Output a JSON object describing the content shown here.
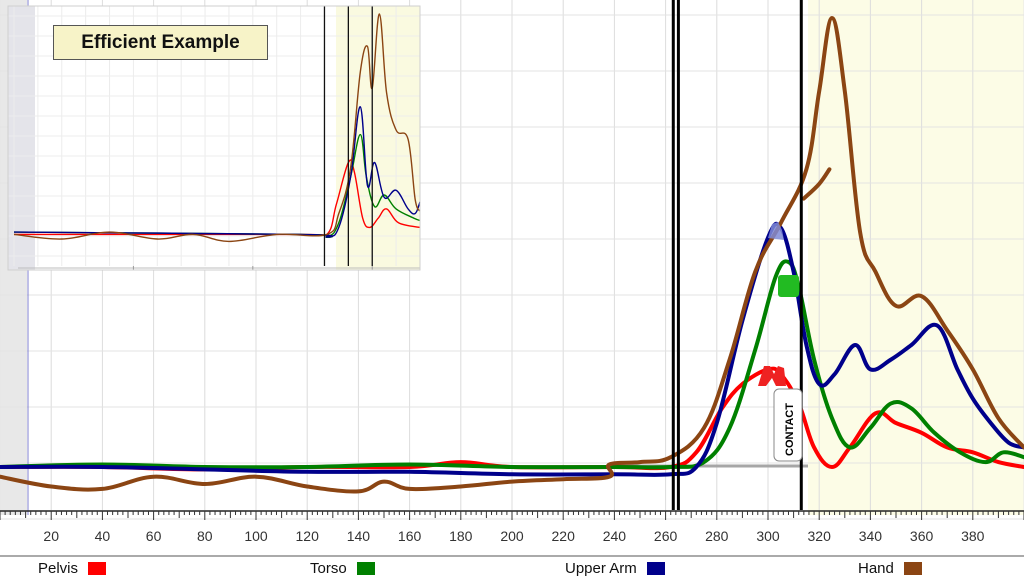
{
  "inset": {
    "title": "Efficient Example"
  },
  "event_label": "CONTACT",
  "colors": {
    "pelvis": "#ff0000",
    "torso": "#008000",
    "upper_arm": "#00008b",
    "hand": "#8b4513"
  },
  "chart_data": {
    "type": "line",
    "xlim": [
      0,
      400
    ],
    "ylim": [
      0,
      1
    ],
    "x_ticks": [
      20,
      40,
      60,
      80,
      100,
      120,
      140,
      160,
      180,
      200,
      220,
      240,
      260,
      280,
      300,
      320,
      340,
      360,
      380
    ],
    "grid": true,
    "legend_placement": "bottom",
    "vertical_markers": [
      263,
      265,
      313
    ],
    "event_markers": [
      {
        "label": "CONTACT",
        "x": 313
      }
    ],
    "series": [
      {
        "name": "Pelvis",
        "color": "#ff0000",
        "points": [
          [
            0,
            0.08
          ],
          [
            40,
            0.08
          ],
          [
            80,
            0.075
          ],
          [
            120,
            0.08
          ],
          [
            160,
            0.08
          ],
          [
            180,
            0.09
          ],
          [
            200,
            0.08
          ],
          [
            240,
            0.08
          ],
          [
            262,
            0.08
          ],
          [
            272,
            0.11
          ],
          [
            282,
            0.2
          ],
          [
            290,
            0.25
          ],
          [
            300,
            0.28
          ],
          [
            305,
            0.27
          ],
          [
            312,
            0.21
          ],
          [
            318,
            0.12
          ],
          [
            325,
            0.08
          ],
          [
            332,
            0.12
          ],
          [
            342,
            0.19
          ],
          [
            350,
            0.17
          ],
          [
            360,
            0.15
          ],
          [
            370,
            0.12
          ],
          [
            380,
            0.11
          ],
          [
            390,
            0.09
          ],
          [
            400,
            0.08
          ]
        ]
      },
      {
        "name": "Torso",
        "color": "#008000",
        "points": [
          [
            0,
            0.08
          ],
          [
            40,
            0.085
          ],
          [
            80,
            0.08
          ],
          [
            120,
            0.08
          ],
          [
            160,
            0.085
          ],
          [
            200,
            0.08
          ],
          [
            240,
            0.08
          ],
          [
            262,
            0.08
          ],
          [
            275,
            0.09
          ],
          [
            285,
            0.16
          ],
          [
            295,
            0.32
          ],
          [
            303,
            0.47
          ],
          [
            308,
            0.5
          ],
          [
            312,
            0.45
          ],
          [
            318,
            0.3
          ],
          [
            325,
            0.18
          ],
          [
            332,
            0.12
          ],
          [
            340,
            0.16
          ],
          [
            348,
            0.21
          ],
          [
            356,
            0.2
          ],
          [
            365,
            0.15
          ],
          [
            375,
            0.11
          ],
          [
            385,
            0.09
          ],
          [
            392,
            0.11
          ],
          [
            400,
            0.1
          ]
        ]
      },
      {
        "name": "Upper Arm",
        "color": "#00008b",
        "points": [
          [
            0,
            0.08
          ],
          [
            40,
            0.08
          ],
          [
            80,
            0.075
          ],
          [
            120,
            0.07
          ],
          [
            160,
            0.07
          ],
          [
            200,
            0.065
          ],
          [
            240,
            0.065
          ],
          [
            262,
            0.065
          ],
          [
            272,
            0.08
          ],
          [
            280,
            0.17
          ],
          [
            290,
            0.38
          ],
          [
            300,
            0.55
          ],
          [
            305,
            0.57
          ],
          [
            310,
            0.48
          ],
          [
            315,
            0.33
          ],
          [
            320,
            0.25
          ],
          [
            326,
            0.27
          ],
          [
            334,
            0.33
          ],
          [
            340,
            0.28
          ],
          [
            348,
            0.3
          ],
          [
            356,
            0.33
          ],
          [
            366,
            0.37
          ],
          [
            374,
            0.28
          ],
          [
            380,
            0.22
          ],
          [
            387,
            0.17
          ],
          [
            394,
            0.13
          ],
          [
            400,
            0.12
          ]
        ]
      },
      {
        "name": "Hand",
        "color": "#8b4513",
        "points": [
          [
            0,
            0.06
          ],
          [
            20,
            0.04
          ],
          [
            40,
            0.035
          ],
          [
            60,
            0.06
          ],
          [
            80,
            0.045
          ],
          [
            100,
            0.06
          ],
          [
            120,
            0.04
          ],
          [
            140,
            0.03
          ],
          [
            150,
            0.05
          ],
          [
            160,
            0.035
          ],
          [
            180,
            0.04
          ],
          [
            200,
            0.05
          ],
          [
            220,
            0.055
          ],
          [
            238,
            0.06
          ],
          [
            238,
            0.085
          ],
          [
            250,
            0.09
          ],
          [
            262,
            0.1
          ],
          [
            275,
            0.16
          ],
          [
            285,
            0.3
          ],
          [
            295,
            0.48
          ],
          [
            305,
            0.58
          ],
          [
            315,
            0.69
          ],
          [
            320,
            0.85
          ],
          [
            325,
            1.0
          ],
          [
            330,
            0.85
          ],
          [
            336,
            0.56
          ],
          [
            342,
            0.48
          ],
          [
            350,
            0.41
          ],
          [
            360,
            0.43
          ],
          [
            370,
            0.36
          ],
          [
            380,
            0.28
          ],
          [
            390,
            0.18
          ],
          [
            400,
            0.12
          ]
        ]
      },
      {
        "name": "Hand extension",
        "color": "#8b4513",
        "points": [
          [
            314,
            0.63
          ],
          [
            320,
            0.66
          ],
          [
            324,
            0.69
          ]
        ]
      }
    ]
  },
  "legend": [
    {
      "label": "Pelvis",
      "color": "#ff0000"
    },
    {
      "label": "Torso",
      "color": "#008000"
    },
    {
      "label": "Upper Arm",
      "color": "#00008b"
    },
    {
      "label": "Hand",
      "color": "#8b4513"
    }
  ],
  "inset_chart": {
    "x_ticks": [
      100,
      200,
      300
    ],
    "markers": [
      260,
      280,
      300
    ],
    "series": [
      {
        "name": "Pelvis",
        "color": "#ff0000",
        "points": [
          [
            0,
            0.05
          ],
          [
            240,
            0.05
          ],
          [
            262,
            0.05
          ],
          [
            270,
            0.18
          ],
          [
            280,
            0.36
          ],
          [
            285,
            0.32
          ],
          [
            292,
            0.12
          ],
          [
            298,
            0.08
          ],
          [
            305,
            0.12
          ],
          [
            312,
            0.16
          ],
          [
            322,
            0.1
          ],
          [
            340,
            0.08
          ]
        ]
      },
      {
        "name": "Torso",
        "color": "#008000",
        "points": [
          [
            0,
            0.06
          ],
          [
            240,
            0.05
          ],
          [
            262,
            0.04
          ],
          [
            272,
            0.1
          ],
          [
            282,
            0.3
          ],
          [
            290,
            0.48
          ],
          [
            295,
            0.3
          ],
          [
            302,
            0.17
          ],
          [
            310,
            0.22
          ],
          [
            320,
            0.16
          ],
          [
            335,
            0.12
          ],
          [
            340,
            0.11
          ]
        ]
      },
      {
        "name": "Upper Arm",
        "color": "#00008b",
        "points": [
          [
            0,
            0.06
          ],
          [
            240,
            0.05
          ],
          [
            262,
            0.04
          ],
          [
            272,
            0.08
          ],
          [
            282,
            0.3
          ],
          [
            290,
            0.6
          ],
          [
            296,
            0.26
          ],
          [
            302,
            0.36
          ],
          [
            310,
            0.21
          ],
          [
            320,
            0.24
          ],
          [
            330,
            0.16
          ],
          [
            336,
            0.14
          ],
          [
            340,
            0.19
          ]
        ]
      },
      {
        "name": "Hand",
        "color": "#8b4513",
        "points": [
          [
            0,
            0.05
          ],
          [
            40,
            0.03
          ],
          [
            80,
            0.06
          ],
          [
            120,
            0.03
          ],
          [
            150,
            0.05
          ],
          [
            180,
            0.02
          ],
          [
            220,
            0.05
          ],
          [
            262,
            0.05
          ],
          [
            272,
            0.14
          ],
          [
            282,
            0.34
          ],
          [
            290,
            0.75
          ],
          [
            296,
            0.86
          ],
          [
            300,
            0.68
          ],
          [
            306,
            1.0
          ],
          [
            312,
            0.66
          ],
          [
            320,
            0.5
          ],
          [
            330,
            0.46
          ],
          [
            336,
            0.2
          ],
          [
            340,
            0.15
          ]
        ]
      }
    ]
  }
}
